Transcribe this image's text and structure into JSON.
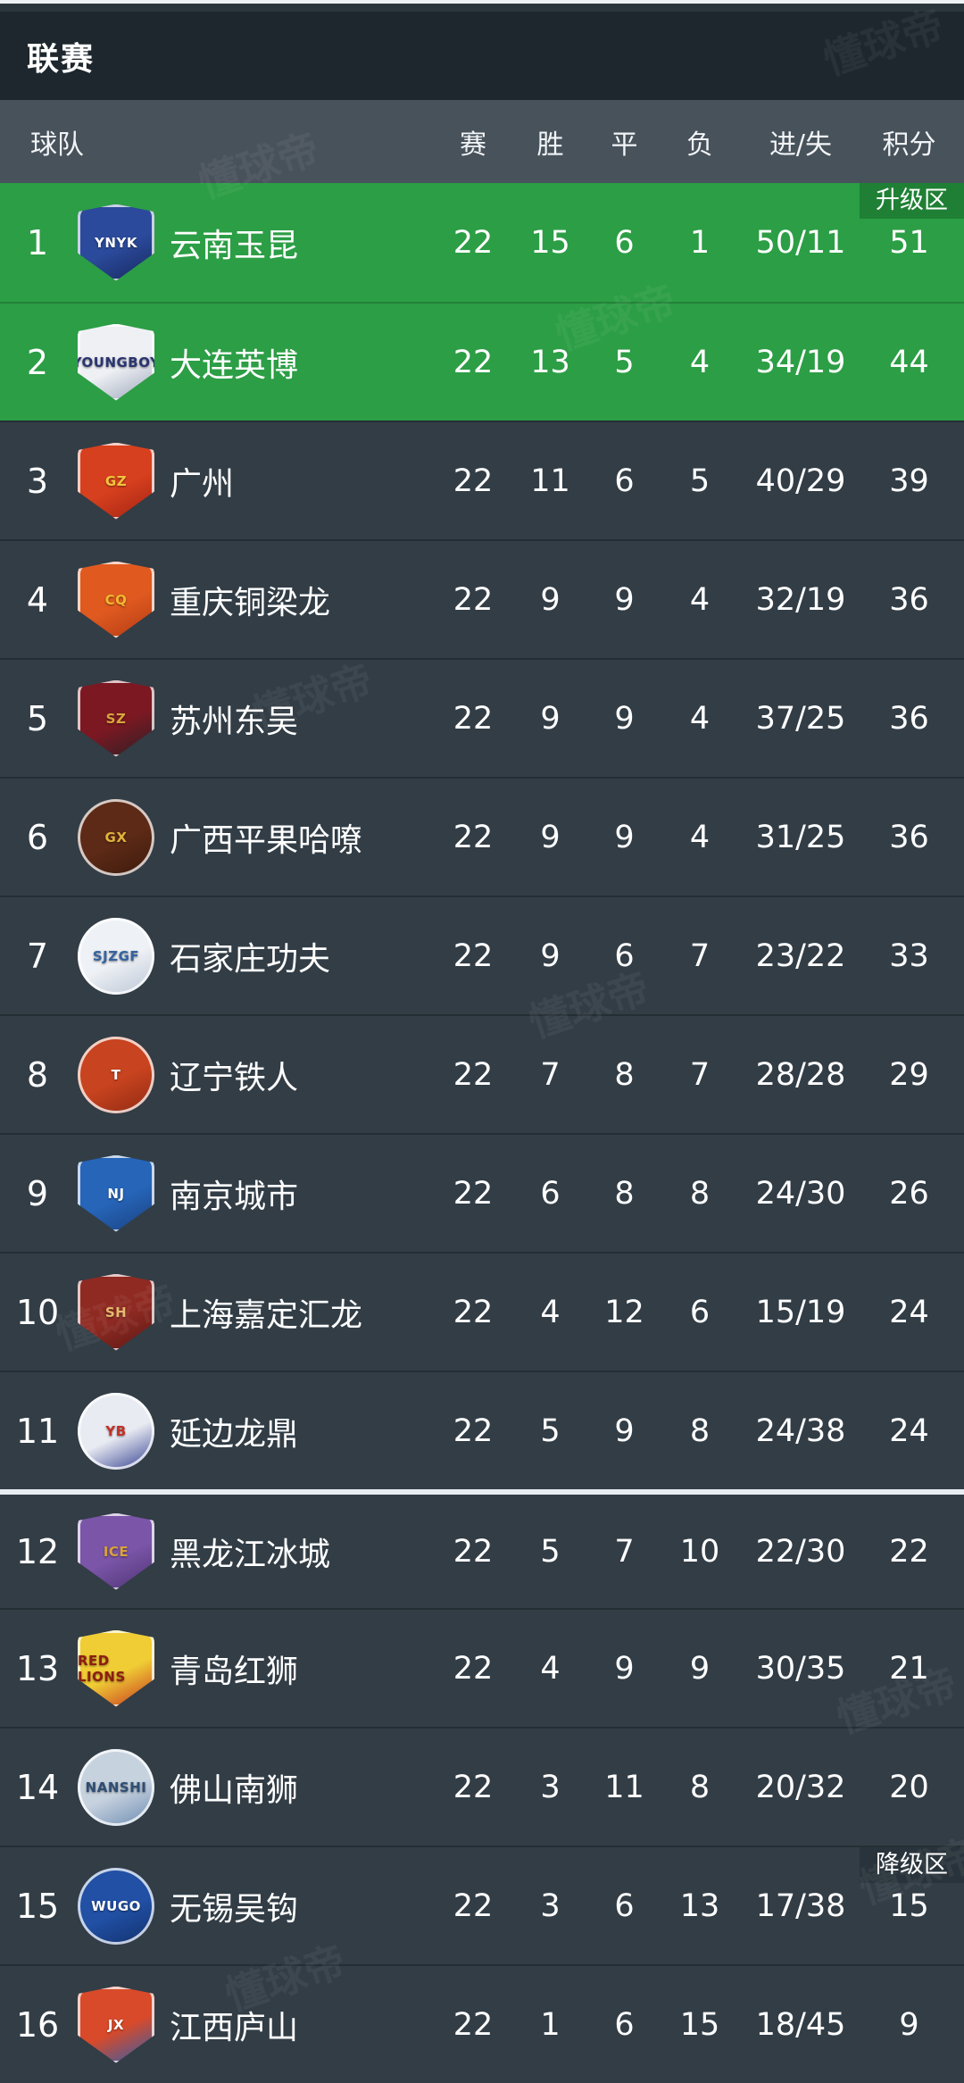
{
  "header": {
    "title": "联赛"
  },
  "watermark": {
    "text": "懂球帝"
  },
  "table": {
    "columns": {
      "team": "球队",
      "played": "赛",
      "win": "胜",
      "draw": "平",
      "loss": "负",
      "goals": "进/失",
      "points": "积分"
    },
    "zone_badges": {
      "promotion": "升级区",
      "relegation": "降级区"
    },
    "colors": {
      "promotion_row_bg": "#2c9e45",
      "promotion_badge_bg": "#1f8035",
      "relegation_badge_bg": "#29333b",
      "row_bg": "#323d46",
      "header_row_bg": "#48525b",
      "panel_bg": "#1d272d"
    },
    "rows": [
      {
        "rank": "1",
        "team": "云南玉昆",
        "played": "22",
        "win": "15",
        "draw": "6",
        "loss": "1",
        "goals": "50/11",
        "points": "51",
        "zone": "promotion",
        "badge": "升级区",
        "logo": {
          "shape": "shield",
          "bg": [
            "#2b4a9b",
            "#17285e"
          ],
          "fg": "#ffffff",
          "label": "YNYK"
        }
      },
      {
        "rank": "2",
        "team": "大连英博",
        "played": "22",
        "win": "13",
        "draw": "5",
        "loss": "4",
        "goals": "34/19",
        "points": "44",
        "zone": "promotion",
        "logo": {
          "shape": "shield",
          "bg": [
            "#eef0f4",
            "#9aa4b8"
          ],
          "fg": "#2a3570",
          "label": "YOUNGBOY"
        }
      },
      {
        "rank": "3",
        "team": "广州",
        "played": "22",
        "win": "11",
        "draw": "6",
        "loss": "5",
        "goals": "40/29",
        "points": "39",
        "logo": {
          "shape": "shield",
          "bg": [
            "#d7401e",
            "#a32313"
          ],
          "fg": "#f3c53d",
          "label": "GZ"
        }
      },
      {
        "rank": "4",
        "team": "重庆铜梁龙",
        "played": "22",
        "win": "9",
        "draw": "9",
        "loss": "4",
        "goals": "32/19",
        "points": "36",
        "logo": {
          "shape": "shield",
          "bg": [
            "#e05a20",
            "#b23a14"
          ],
          "fg": "#f3b72e",
          "label": "CQ"
        }
      },
      {
        "rank": "5",
        "team": "苏州东吴",
        "played": "22",
        "win": "9",
        "draw": "9",
        "loss": "4",
        "goals": "37/25",
        "points": "36",
        "logo": {
          "shape": "shield",
          "bg": [
            "#7c1822",
            "#2a2126"
          ],
          "fg": "#d9a43c",
          "label": "SZ"
        }
      },
      {
        "rank": "6",
        "team": "广西平果哈嘹",
        "played": "22",
        "win": "9",
        "draw": "9",
        "loss": "4",
        "goals": "31/25",
        "points": "36",
        "logo": {
          "shape": "circle",
          "bg": [
            "#5c2a16",
            "#3d1a0c"
          ],
          "fg": "#e3b23c",
          "label": "GX"
        }
      },
      {
        "rank": "7",
        "team": "石家庄功夫",
        "played": "22",
        "win": "9",
        "draw": "6",
        "loss": "7",
        "goals": "23/22",
        "points": "33",
        "logo": {
          "shape": "circle",
          "bg": [
            "#eef1f5",
            "#b9c4d4"
          ],
          "fg": "#35649f",
          "label": "SJZGF"
        }
      },
      {
        "rank": "8",
        "team": "辽宁铁人",
        "played": "22",
        "win": "7",
        "draw": "8",
        "loss": "7",
        "goals": "28/28",
        "points": "29",
        "logo": {
          "shape": "circle",
          "bg": [
            "#c8431f",
            "#8e2a12"
          ],
          "fg": "#ffffff",
          "label": "T"
        }
      },
      {
        "rank": "9",
        "team": "南京城市",
        "played": "22",
        "win": "6",
        "draw": "8",
        "loss": "8",
        "goals": "24/30",
        "points": "26",
        "logo": {
          "shape": "shield",
          "bg": [
            "#2665b8",
            "#1a407e"
          ],
          "fg": "#ffffff",
          "label": "NJ"
        }
      },
      {
        "rank": "10",
        "team": "上海嘉定汇龙",
        "played": "22",
        "win": "4",
        "draw": "12",
        "loss": "6",
        "goals": "15/19",
        "points": "24",
        "logo": {
          "shape": "shield",
          "bg": [
            "#8e2a22",
            "#5c1714"
          ],
          "fg": "#e8b86a",
          "label": "SH"
        }
      },
      {
        "rank": "11",
        "team": "延边龙鼎",
        "played": "22",
        "win": "5",
        "draw": "9",
        "loss": "8",
        "goals": "24/38",
        "points": "24",
        "logo": {
          "shape": "circle",
          "bg": [
            "#e8ebf2",
            "#2c3a8c"
          ],
          "fg": "#c33028",
          "label": "YB"
        }
      },
      {
        "rank": "12",
        "team": "黑龙江冰城",
        "played": "22",
        "win": "5",
        "draw": "7",
        "loss": "10",
        "goals": "22/30",
        "points": "22",
        "divider_above": true,
        "logo": {
          "shape": "shield",
          "bg": [
            "#7b55a8",
            "#4e3374"
          ],
          "fg": "#d9a33c",
          "label": "ICE"
        }
      },
      {
        "rank": "13",
        "team": "青岛红狮",
        "played": "22",
        "win": "4",
        "draw": "9",
        "loss": "9",
        "goals": "30/35",
        "points": "21",
        "logo": {
          "shape": "shield",
          "bg": [
            "#f0cd35",
            "#c5301f"
          ],
          "fg": "#8e1d12",
          "label": "RED LIONS"
        }
      },
      {
        "rank": "14",
        "team": "佛山南狮",
        "played": "22",
        "win": "3",
        "draw": "11",
        "loss": "8",
        "goals": "20/32",
        "points": "20",
        "logo": {
          "shape": "circle",
          "bg": [
            "#c7d2df",
            "#6a8ab0"
          ],
          "fg": "#2f4d74",
          "label": "NANSHI"
        }
      },
      {
        "rank": "15",
        "team": "无锡吴钩",
        "played": "22",
        "win": "3",
        "draw": "6",
        "loss": "13",
        "goals": "17/38",
        "points": "15",
        "zone": "relegation",
        "badge": "降级区",
        "logo": {
          "shape": "circle",
          "bg": [
            "#2150a5",
            "#12306b"
          ],
          "fg": "#ffffff",
          "label": "WUGO"
        }
      },
      {
        "rank": "16",
        "team": "江西庐山",
        "played": "22",
        "win": "1",
        "draw": "6",
        "loss": "15",
        "goals": "18/45",
        "points": "9",
        "zone": "relegation",
        "logo": {
          "shape": "shield",
          "bg": [
            "#d84a2a",
            "#2a5fb0"
          ],
          "fg": "#ffffff",
          "label": "JX"
        }
      }
    ]
  }
}
